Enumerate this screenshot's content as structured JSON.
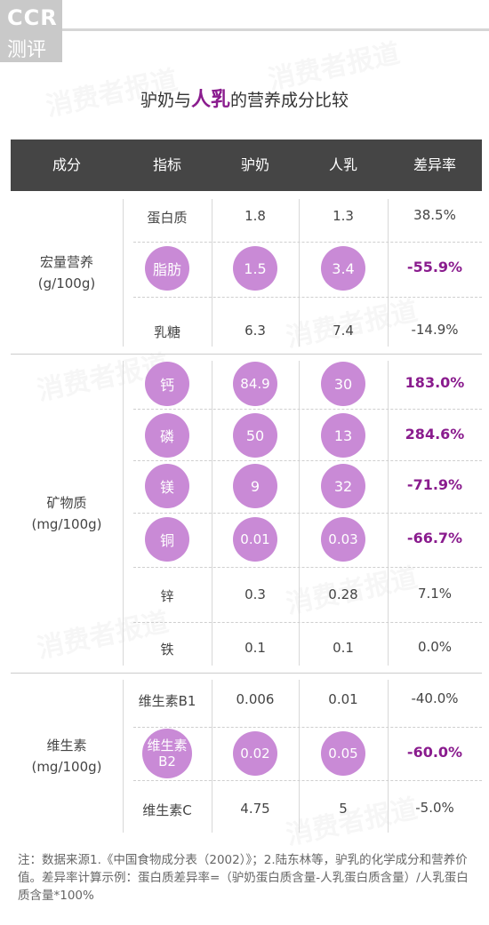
{
  "logo": {
    "line1": "CCR",
    "line2": "测评"
  },
  "title": {
    "prefix": "驴奶与",
    "highlight": "人乳",
    "suffix": "的营养成分比较"
  },
  "columns": [
    "成分",
    "指标",
    "驴奶",
    "人乳",
    "差异率"
  ],
  "groups": [
    {
      "name": "宏量营养",
      "unit": "(g/100g)"
    },
    {
      "name": "矿物质",
      "unit": "(mg/100g)"
    },
    {
      "name": "维生素",
      "unit": "(mg/100g)"
    }
  ],
  "rows": [
    {
      "indicator": "蛋白质",
      "donkey": "1.8",
      "human": "1.3",
      "diff": "38.5%",
      "highlight": false
    },
    {
      "indicator": "脂肪",
      "donkey": "1.5",
      "human": "3.4",
      "diff": "-55.9%",
      "highlight": true
    },
    {
      "indicator": "乳糖",
      "donkey": "6.3",
      "human": "7.4",
      "diff": "-14.9%",
      "highlight": false
    },
    {
      "indicator": "钙",
      "donkey": "84.9",
      "human": "30",
      "diff": "183.0%",
      "highlight": true
    },
    {
      "indicator": "磷",
      "donkey": "50",
      "human": "13",
      "diff": "284.6%",
      "highlight": true
    },
    {
      "indicator": "镁",
      "donkey": "9",
      "human": "32",
      "diff": "-71.9%",
      "highlight": true
    },
    {
      "indicator": "铜",
      "donkey": "0.01",
      "human": "0.03",
      "diff": "-66.7%",
      "highlight": true
    },
    {
      "indicator": "锌",
      "donkey": "0.3",
      "human": "0.28",
      "diff": "7.1%",
      "highlight": false
    },
    {
      "indicator": "铁",
      "donkey": "0.1",
      "human": "0.1",
      "diff": "0.0%",
      "highlight": false
    },
    {
      "indicator": "维生素B1",
      "donkey": "0.006",
      "human": "0.01",
      "diff": "-40.0%",
      "highlight": false
    },
    {
      "indicator": "维生素B2",
      "indicator_line1": "维生素",
      "indicator_line2": "B2",
      "donkey": "0.02",
      "human": "0.05",
      "diff": "-60.0%",
      "highlight": true
    },
    {
      "indicator": "维生素C",
      "donkey": "4.75",
      "human": "5",
      "diff": "-5.0%",
      "highlight": false
    }
  ],
  "note": "注：数据来源1.《中国食物成分表（2002）》；2.陆东林等，驴乳的化学成分和营养价值。差异率计算示例：蛋白质差异率=（驴奶蛋白质含量-人乳蛋白质含量）/人乳蛋白质含量*100%",
  "watermark": "消费者报道",
  "colors": {
    "header_bg": "#454545",
    "highlight_circle": "#c98ad6",
    "emphasis_text": "#8a1c8e",
    "logo_bg": "#c9c9c9"
  }
}
